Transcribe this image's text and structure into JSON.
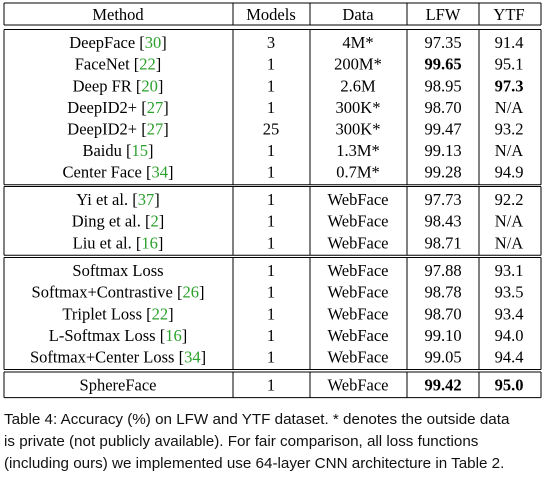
{
  "table": {
    "headers": [
      "Method",
      "Models",
      "Data",
      "LFW",
      "YTF"
    ],
    "groups": [
      [
        {
          "method": "DeepFace",
          "cite": "30",
          "models": "3",
          "data": "4M*",
          "lfw": "97.35",
          "ytf": "91.4",
          "bold": []
        },
        {
          "method": "FaceNet",
          "cite": "22",
          "models": "1",
          "data": "200M*",
          "lfw": "99.65",
          "ytf": "95.1",
          "bold": [
            "lfw"
          ]
        },
        {
          "method": "Deep FR",
          "cite": "20",
          "models": "1",
          "data": "2.6M",
          "lfw": "98.95",
          "ytf": "97.3",
          "bold": [
            "ytf"
          ]
        },
        {
          "method": "DeepID2+",
          "cite": "27",
          "models": "1",
          "data": "300K*",
          "lfw": "98.70",
          "ytf": "N/A",
          "bold": []
        },
        {
          "method": "DeepID2+",
          "cite": "27",
          "models": "25",
          "data": "300K*",
          "lfw": "99.47",
          "ytf": "93.2",
          "bold": []
        },
        {
          "method": "Baidu",
          "cite": "15",
          "models": "1",
          "data": "1.3M*",
          "lfw": "99.13",
          "ytf": "N/A",
          "bold": []
        },
        {
          "method": "Center Face",
          "cite": "34",
          "models": "1",
          "data": "0.7M*",
          "lfw": "99.28",
          "ytf": "94.9",
          "bold": []
        }
      ],
      [
        {
          "method": "Yi et al.",
          "cite": "37",
          "models": "1",
          "data": "WebFace",
          "lfw": "97.73",
          "ytf": "92.2",
          "bold": []
        },
        {
          "method": "Ding et al.",
          "cite": "2",
          "models": "1",
          "data": "WebFace",
          "lfw": "98.43",
          "ytf": "N/A",
          "bold": []
        },
        {
          "method": "Liu et al.",
          "cite": "16",
          "models": "1",
          "data": "WebFace",
          "lfw": "98.71",
          "ytf": "N/A",
          "bold": []
        }
      ],
      [
        {
          "method": "Softmax Loss",
          "cite": "",
          "models": "1",
          "data": "WebFace",
          "lfw": "97.88",
          "ytf": "93.1",
          "bold": []
        },
        {
          "method": "Softmax+Contrastive",
          "cite": "26",
          "models": "1",
          "data": "WebFace",
          "lfw": "98.78",
          "ytf": "93.5",
          "bold": []
        },
        {
          "method": "Triplet Loss",
          "cite": "22",
          "models": "1",
          "data": "WebFace",
          "lfw": "98.70",
          "ytf": "93.4",
          "bold": []
        },
        {
          "method": "L-Softmax Loss",
          "cite": "16",
          "models": "1",
          "data": "WebFace",
          "lfw": "99.10",
          "ytf": "94.0",
          "bold": []
        },
        {
          "method": "Softmax+Center Loss",
          "cite": "34",
          "models": "1",
          "data": "WebFace",
          "lfw": "99.05",
          "ytf": "94.4",
          "bold": []
        }
      ],
      [
        {
          "method": "SphereFace",
          "cite": "",
          "models": "1",
          "data": "WebFace",
          "lfw": "99.42",
          "ytf": "95.0",
          "bold": [
            "lfw",
            "ytf"
          ]
        }
      ]
    ]
  },
  "caption": {
    "lines": [
      "Table 4: Accuracy (%) on LFW and YTF dataset. * denotes the outside data",
      "is private (not publicly available). For fair comparison, all loss functions",
      "(including ours) we implemented use 64-layer CNN architecture in Table 2."
    ]
  },
  "colors": {
    "citation": "#2ca02c",
    "rule": "#000000"
  }
}
